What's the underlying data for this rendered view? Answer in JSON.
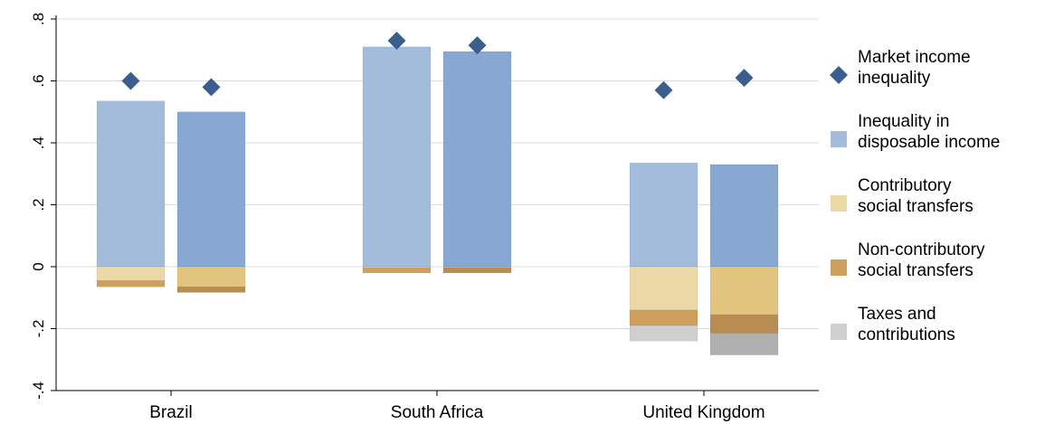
{
  "chart_data": {
    "type": "bar",
    "stacked": true,
    "categories": [
      "Brazil",
      "South Africa",
      "United Kingdom"
    ],
    "bars_per_category": 2,
    "ylim": [
      -0.4,
      0.8
    ],
    "yticks": [
      {
        "value": -0.4,
        "label": "-.4"
      },
      {
        "value": -0.2,
        "label": "-.2"
      },
      {
        "value": 0,
        "label": "0"
      },
      {
        "value": 0.2,
        "label": ".2"
      },
      {
        "value": 0.4,
        "label": ".4"
      },
      {
        "value": 0.6,
        "label": ".6"
      },
      {
        "value": 0.8,
        "label": ".8"
      }
    ],
    "grid": true,
    "legend_position": "right",
    "series": [
      {
        "name": "Market income inequality",
        "kind": "marker",
        "name_lines": [
          "Market income",
          "inequality"
        ],
        "color": "#3a5f8f",
        "values": [
          [
            0.6,
            0.58
          ],
          [
            0.73,
            0.715
          ],
          [
            0.57,
            0.61
          ]
        ]
      },
      {
        "name": "Inequality in disposable income",
        "kind": "bar",
        "name_lines": [
          "Inequality in",
          "disposable income"
        ],
        "color": "#a3bcdb",
        "color_alt": "#86a8d2",
        "values": [
          [
            0.535,
            0.5
          ],
          [
            0.71,
            0.695
          ],
          [
            0.335,
            0.33
          ]
        ]
      },
      {
        "name": "Contributory social transfers",
        "kind": "bar",
        "name_lines": [
          "Contributory",
          "social transfers"
        ],
        "color": "#ecd7a6",
        "color_alt": "#e3c47e",
        "values": [
          [
            -0.045,
            -0.065
          ],
          [
            -0.003,
            -0.003
          ],
          [
            -0.14,
            -0.155
          ]
        ]
      },
      {
        "name": "Non-contributory social transfers",
        "kind": "bar",
        "name_lines": [
          "Non-contributory",
          "social transfers"
        ],
        "color": "#cf9f5e",
        "color_alt": "#b98c52",
        "values": [
          [
            -0.02,
            -0.018
          ],
          [
            -0.017,
            -0.017
          ],
          [
            -0.05,
            -0.06
          ]
        ]
      },
      {
        "name": "Taxes and contributions",
        "kind": "bar",
        "name_lines": [
          "Taxes and",
          "contributions"
        ],
        "color": "#cfcfcf",
        "color_alt": "#b0b0b0",
        "values": [
          [
            0,
            0
          ],
          [
            0,
            0
          ],
          [
            -0.05,
            -0.07
          ]
        ]
      }
    ]
  }
}
